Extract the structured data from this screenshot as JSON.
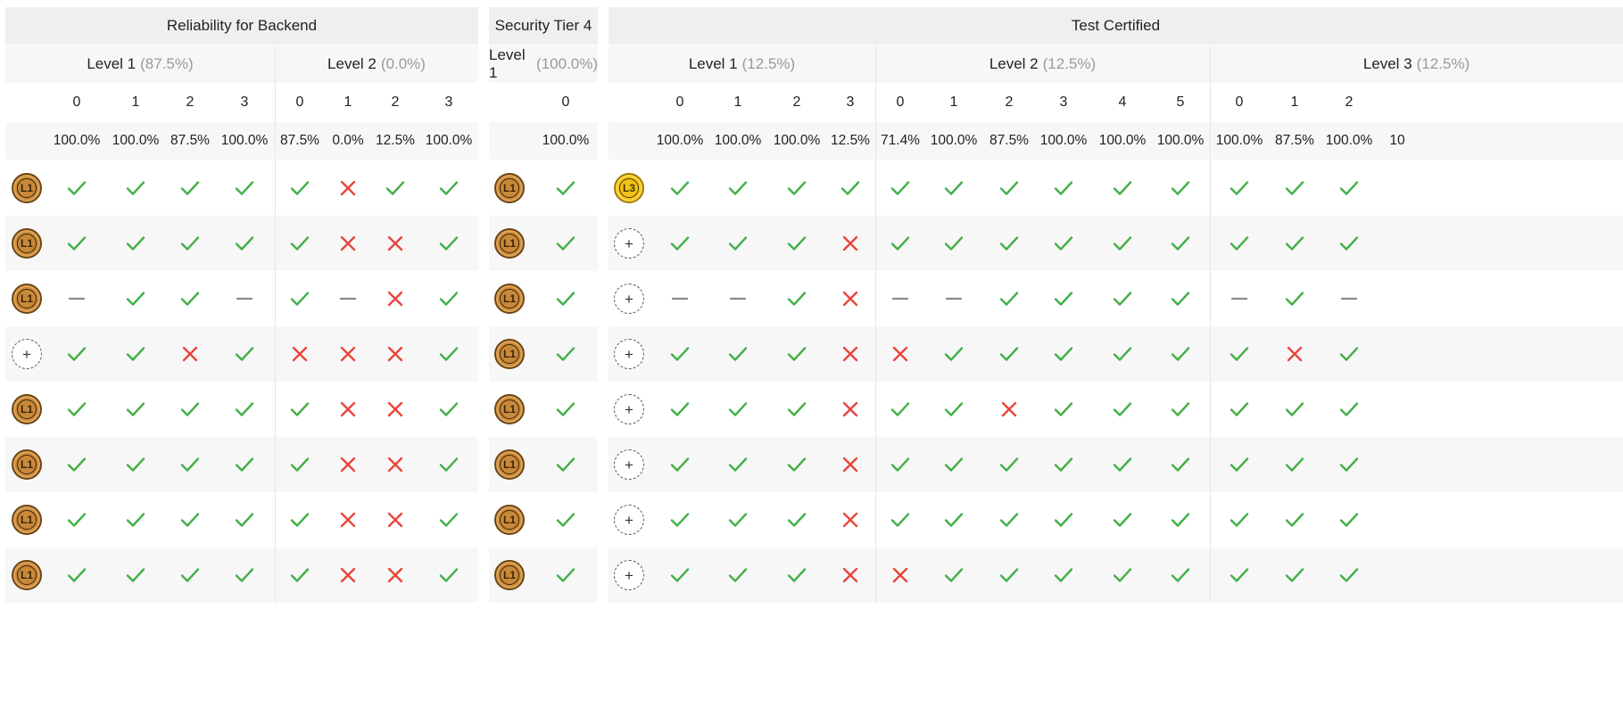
{
  "groups": [
    {
      "title": "Reliability for Backend",
      "levels": [
        {
          "name": "Level 1",
          "pct": "(87.5%)",
          "cols": [
            {
              "num": "0",
              "pct": "100.0%"
            },
            {
              "num": "1",
              "pct": "100.0%"
            },
            {
              "num": "2",
              "pct": "87.5%"
            },
            {
              "num": "3",
              "pct": "100.0%"
            }
          ]
        },
        {
          "name": "Level 2",
          "pct": "(0.0%)",
          "cols": [
            {
              "num": "0",
              "pct": "87.5%"
            },
            {
              "num": "1",
              "pct": "0.0%"
            },
            {
              "num": "2",
              "pct": "12.5%"
            },
            {
              "num": "3",
              "pct": "100.0%"
            }
          ]
        }
      ],
      "badges": [
        "L1",
        "L1",
        "L1",
        "plus",
        "L1",
        "L1",
        "L1",
        "L1"
      ],
      "rows": [
        [
          "c",
          "c",
          "c",
          "c",
          "c",
          "x",
          "c",
          "c"
        ],
        [
          "c",
          "c",
          "c",
          "c",
          "c",
          "x",
          "x",
          "c"
        ],
        [
          "d",
          "c",
          "c",
          "d",
          "c",
          "d",
          "x",
          "c"
        ],
        [
          "c",
          "c",
          "x",
          "c",
          "x",
          "x",
          "x",
          "c"
        ],
        [
          "c",
          "c",
          "c",
          "c",
          "c",
          "x",
          "x",
          "c"
        ],
        [
          "c",
          "c",
          "c",
          "c",
          "c",
          "x",
          "x",
          "c"
        ],
        [
          "c",
          "c",
          "c",
          "c",
          "c",
          "x",
          "x",
          "c"
        ],
        [
          "c",
          "c",
          "c",
          "c",
          "c",
          "x",
          "x",
          "c"
        ]
      ]
    },
    {
      "title": "Security Tier 4",
      "levels": [
        {
          "name": "Level 1",
          "pct": "(100.0%)",
          "cols": [
            {
              "num": "0",
              "pct": "100.0%"
            }
          ]
        }
      ],
      "badges": [
        "L1",
        "L1",
        "L1",
        "L1",
        "L1",
        "L1",
        "L1",
        "L1"
      ],
      "rows": [
        [
          "c"
        ],
        [
          "c"
        ],
        [
          "c"
        ],
        [
          "c"
        ],
        [
          "c"
        ],
        [
          "c"
        ],
        [
          "c"
        ],
        [
          "c"
        ]
      ]
    },
    {
      "title": "Test Certified",
      "levels": [
        {
          "name": "Level 1",
          "pct": "(12.5%)",
          "cols": [
            {
              "num": "0",
              "pct": "100.0%"
            },
            {
              "num": "1",
              "pct": "100.0%"
            },
            {
              "num": "2",
              "pct": "100.0%"
            },
            {
              "num": "3",
              "pct": "12.5%"
            }
          ]
        },
        {
          "name": "Level 2",
          "pct": "(12.5%)",
          "cols": [
            {
              "num": "0",
              "pct": "71.4%"
            },
            {
              "num": "1",
              "pct": "100.0%"
            },
            {
              "num": "2",
              "pct": "87.5%"
            },
            {
              "num": "3",
              "pct": "100.0%"
            },
            {
              "num": "4",
              "pct": "100.0%"
            },
            {
              "num": "5",
              "pct": "100.0%"
            }
          ]
        },
        {
          "name": "Level 3",
          "pct": "(12.5%)",
          "cols": [
            {
              "num": "0",
              "pct": "100.0%"
            },
            {
              "num": "1",
              "pct": "87.5%"
            },
            {
              "num": "2",
              "pct": "100.0%"
            },
            {
              "num": "",
              "pct": "10"
            }
          ]
        }
      ],
      "badges": [
        "L3",
        "plus",
        "plus",
        "plus",
        "plus",
        "plus",
        "plus",
        "plus"
      ],
      "rows": [
        [
          "c",
          "c",
          "c",
          "c",
          "c",
          "c",
          "c",
          "c",
          "c",
          "c",
          "c",
          "c",
          "c",
          ""
        ],
        [
          "c",
          "c",
          "c",
          "x",
          "c",
          "c",
          "c",
          "c",
          "c",
          "c",
          "c",
          "c",
          "c",
          ""
        ],
        [
          "d",
          "d",
          "c",
          "x",
          "d",
          "d",
          "c",
          "c",
          "c",
          "c",
          "d",
          "c",
          "d",
          ""
        ],
        [
          "c",
          "c",
          "c",
          "x",
          "x",
          "c",
          "c",
          "c",
          "c",
          "c",
          "c",
          "x",
          "c",
          ""
        ],
        [
          "c",
          "c",
          "c",
          "x",
          "c",
          "c",
          "x",
          "c",
          "c",
          "c",
          "c",
          "c",
          "c",
          ""
        ],
        [
          "c",
          "c",
          "c",
          "x",
          "c",
          "c",
          "c",
          "c",
          "c",
          "c",
          "c",
          "c",
          "c",
          ""
        ],
        [
          "c",
          "c",
          "c",
          "x",
          "c",
          "c",
          "c",
          "c",
          "c",
          "c",
          "c",
          "c",
          "c",
          ""
        ],
        [
          "c",
          "c",
          "c",
          "x",
          "x",
          "c",
          "c",
          "c",
          "c",
          "c",
          "c",
          "c",
          "c",
          ""
        ]
      ]
    }
  ],
  "colors": {
    "check": "#43b049",
    "cross": "#e8453c",
    "dash": "#8a8a8a"
  },
  "icons": {
    "c": "check-icon",
    "x": "cross-icon",
    "d": "dash-icon",
    "L1": "level-1-badge-icon",
    "L3": "level-3-badge-icon",
    "plus": "add-level-badge-icon"
  }
}
